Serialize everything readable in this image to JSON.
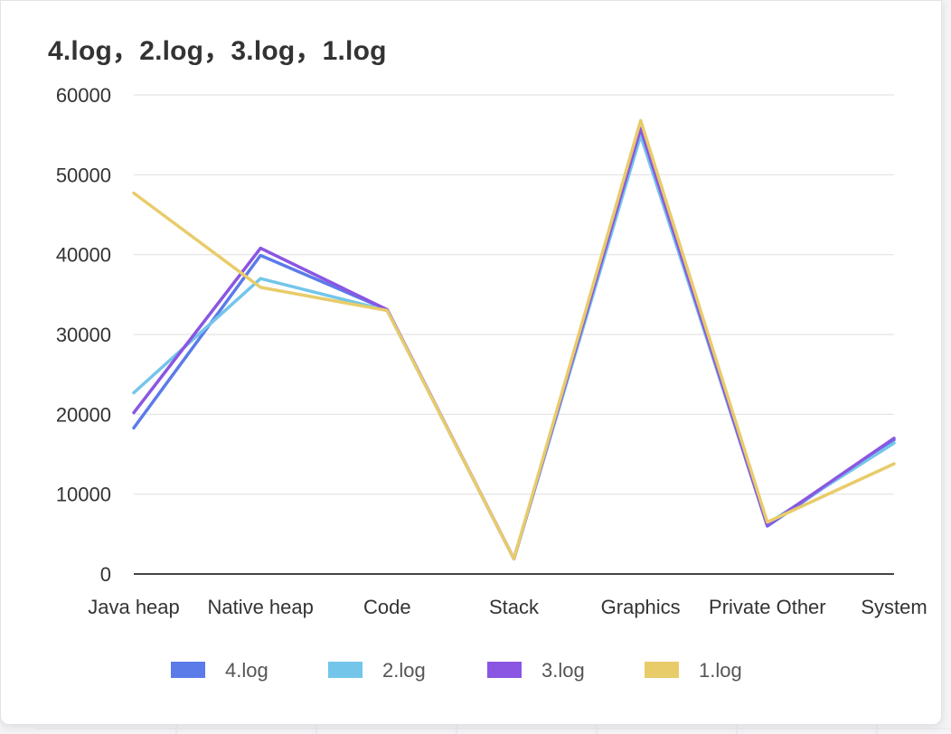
{
  "chart_data": {
    "type": "line",
    "title": "4.log，2.log，3.log，1.log",
    "categories": [
      "Java heap",
      "Native heap",
      "Code",
      "Stack",
      "Graphics",
      "Private Other",
      "System"
    ],
    "ylim": [
      0,
      60000
    ],
    "yticks": [
      0,
      10000,
      20000,
      30000,
      40000,
      50000,
      60000
    ],
    "grid": true,
    "legend_position": "bottom",
    "series": [
      {
        "name": "4.log",
        "color": "#5b7be8",
        "values": [
          18300,
          39900,
          33100,
          1900,
          55200,
          6000,
          16800
        ]
      },
      {
        "name": "2.log",
        "color": "#73c5ea",
        "values": [
          22700,
          37000,
          33000,
          1900,
          54900,
          6300,
          16400
        ]
      },
      {
        "name": "3.log",
        "color": "#8a56e2",
        "values": [
          20200,
          40800,
          33100,
          1900,
          55800,
          6100,
          17000
        ]
      },
      {
        "name": "1.log",
        "color": "#e8cc6a",
        "values": [
          47700,
          35900,
          33000,
          1900,
          56800,
          6500,
          13800
        ]
      }
    ]
  }
}
